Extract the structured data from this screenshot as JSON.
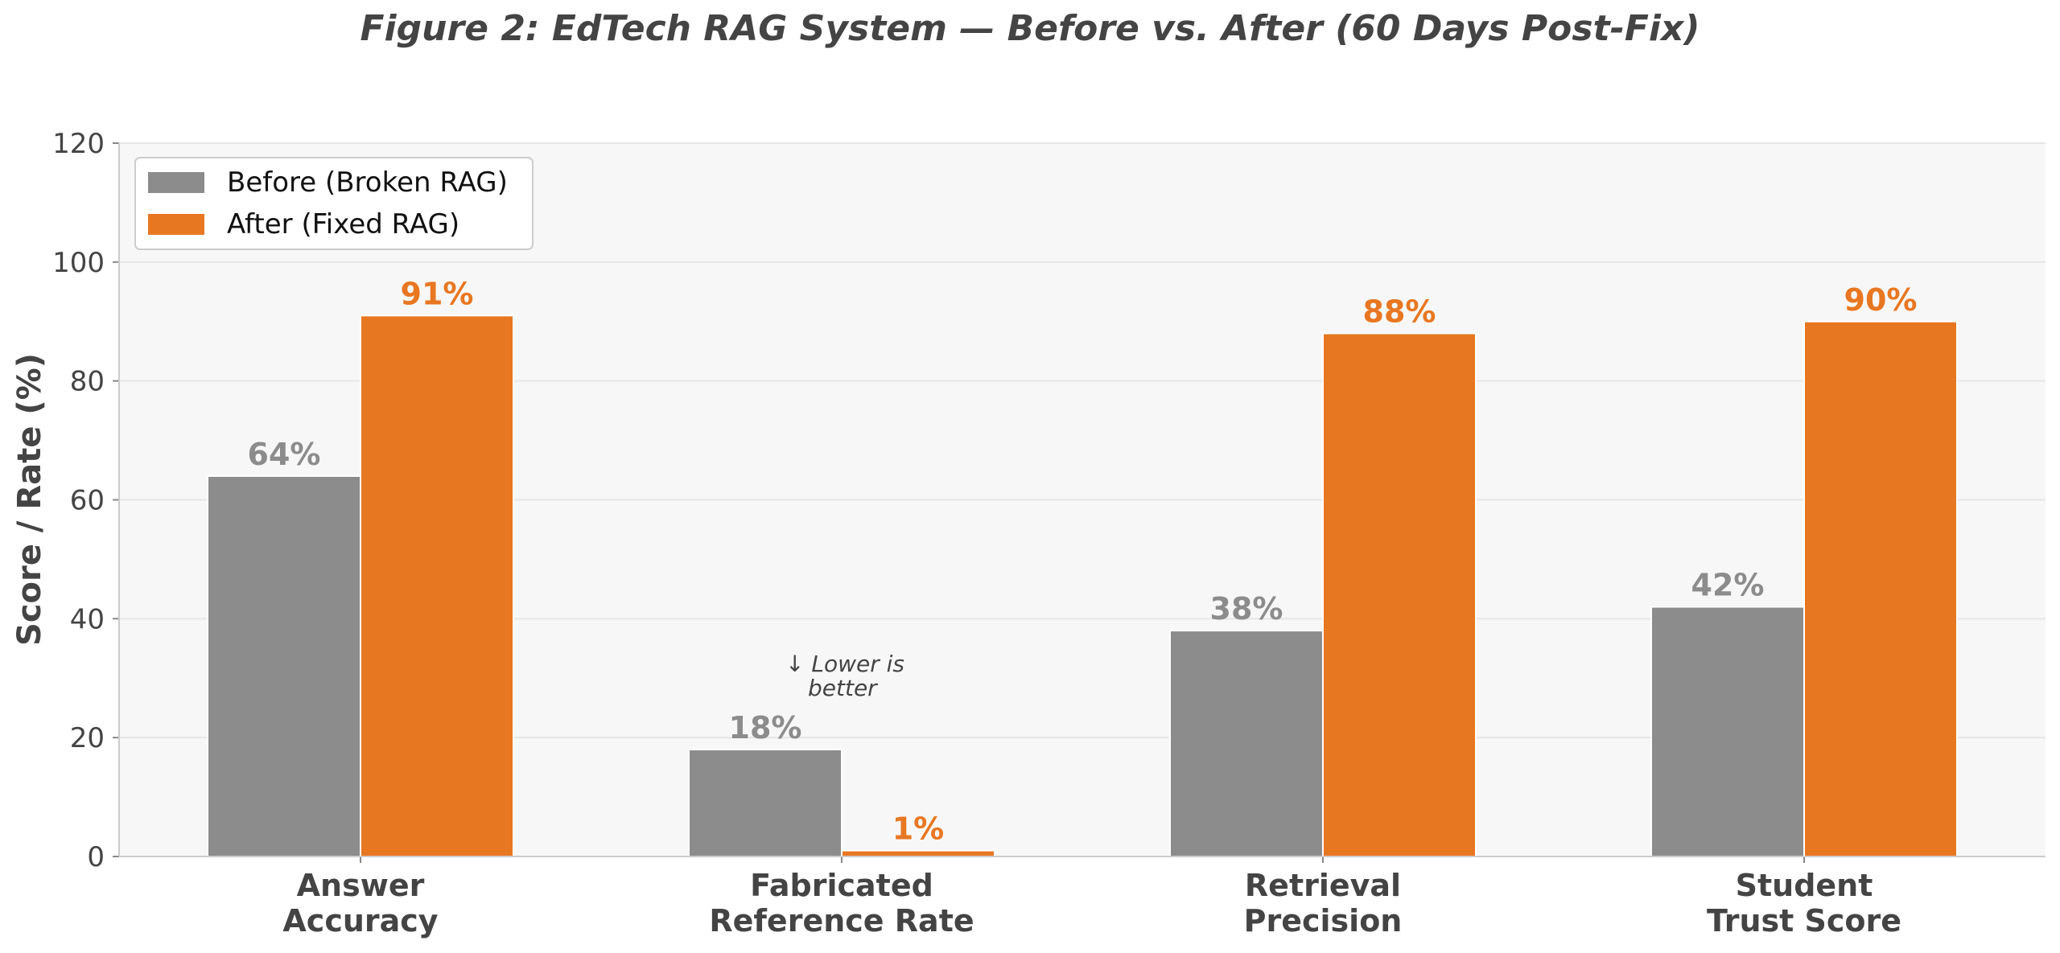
{
  "chart_data": {
    "type": "bar",
    "title": "Figure 2: EdTech RAG System — Before vs. After (60 Days Post-Fix)",
    "ylabel": "Score / Rate (%)",
    "xlabel": "",
    "ylim": [
      0,
      120
    ],
    "yticks": [
      0,
      20,
      40,
      60,
      80,
      100,
      120
    ],
    "grid": true,
    "legend_position": "top-left",
    "categories": [
      [
        "Answer",
        "Accuracy"
      ],
      [
        "Fabricated",
        "Reference Rate"
      ],
      [
        "Retrieval",
        "Precision"
      ],
      [
        "Student",
        "Trust Score"
      ]
    ],
    "series": [
      {
        "name": "Before (Broken RAG)",
        "color": "#8c8c8c",
        "values": [
          64,
          18,
          38,
          42
        ],
        "labels": [
          "64%",
          "18%",
          "38%",
          "42%"
        ]
      },
      {
        "name": "After (Fixed RAG)",
        "color": "#e87722",
        "values": [
          91,
          1,
          88,
          90
        ],
        "labels": [
          "91%",
          "1%",
          "88%",
          "90%"
        ]
      }
    ],
    "annotation": {
      "category_index": 1,
      "lines": [
        "↓ Lower is",
        "better"
      ]
    }
  }
}
